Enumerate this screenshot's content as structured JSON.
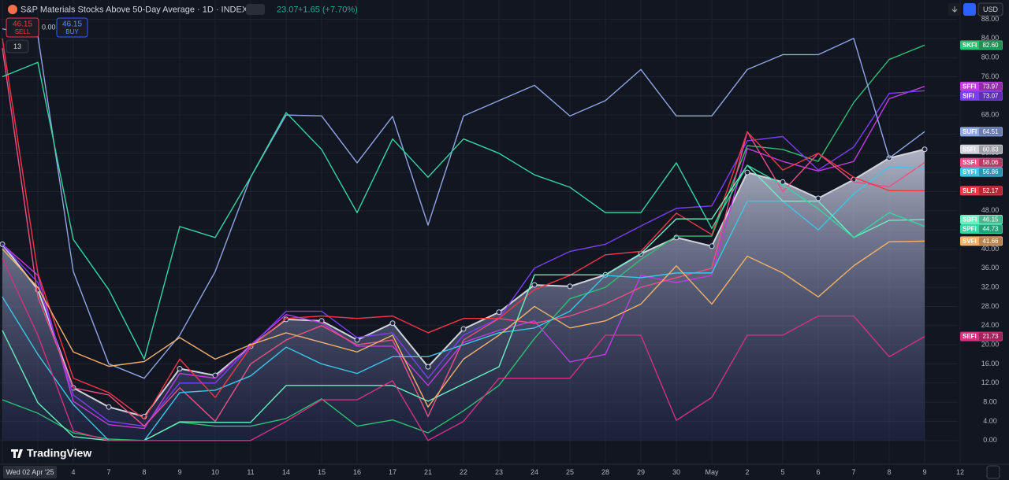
{
  "header": {
    "title": "S&P Materials Stocks Above 50-Day Average · 1D · INDEX",
    "last": "23.07",
    "change": "+1.65 (+7.70%)",
    "sell_price": "46.15",
    "sell": "SELL",
    "spread": "0.00",
    "buy_price": "46.15",
    "buy": "BUY",
    "indicator_count": "13",
    "currency": "USD",
    "logo": "TradingView"
  },
  "chart_data": {
    "type": "line",
    "categories": [
      "Wed 02 Apr '25",
      null,
      "4",
      "7",
      "8",
      "9",
      "10",
      "11",
      "14",
      "15",
      "16",
      "17",
      "21",
      "22",
      "23",
      "24",
      "25",
      "28",
      "29",
      "30",
      "May",
      "2",
      "5",
      "6",
      "7",
      "8",
      "9",
      "12"
    ],
    "ylim": [
      -2.5,
      91.2
    ],
    "yticks": [
      {
        "value": 0,
        "label": "0.00"
      },
      {
        "value": 4,
        "label": "4.00"
      },
      {
        "value": 8,
        "label": "8.00"
      },
      {
        "value": 12,
        "label": "12.00"
      },
      {
        "value": 16,
        "label": "16.00"
      },
      {
        "value": 20,
        "label": "20.00"
      },
      {
        "value": 24,
        "label": "24.00"
      },
      {
        "value": 28,
        "label": "28.00"
      },
      {
        "value": 32,
        "label": "32.00"
      },
      {
        "value": 36,
        "label": "36.00"
      },
      {
        "value": 40,
        "label": "40.00"
      },
      {
        "value": 44,
        "label": "44.00"
      },
      {
        "value": 48,
        "label": "48.00"
      },
      {
        "value": 52,
        "label": "52.00"
      },
      {
        "value": 56,
        "label": "56.00"
      },
      {
        "value": 60,
        "label": "60.00"
      },
      {
        "value": 64,
        "label": "64.00"
      },
      {
        "value": 68,
        "label": "68.00"
      },
      {
        "value": 72,
        "label": "72.00"
      },
      {
        "value": 76,
        "label": "76.00"
      },
      {
        "value": 80,
        "label": "80.00"
      },
      {
        "value": 84,
        "label": "84.00"
      },
      {
        "value": 88,
        "label": "88.00"
      }
    ],
    "grid": true,
    "series": [
      {
        "name": "S5FI",
        "color": "#d1d4dc",
        "area": true,
        "markers": true,
        "values": [
          41,
          31.5,
          11,
          7,
          5,
          15,
          13.6,
          19.7,
          25.3,
          25,
          21,
          24.5,
          15.4,
          23.3,
          26.8,
          32.5,
          32.2,
          34.6,
          39,
          42.4,
          40.6,
          56,
          54,
          50.6,
          54.5,
          59,
          60.83,
          null
        ],
        "value_labels": [
          null,
          null,
          null,
          null,
          null,
          null,
          null,
          null,
          null,
          null,
          null,
          null,
          null,
          null,
          null,
          null,
          null,
          null,
          null,
          null,
          null,
          null,
          null,
          null,
          null,
          null,
          "60.83",
          null
        ]
      },
      {
        "name": "SKFI",
        "color": "#2fbf71",
        "values": [
          8.5,
          5.7,
          1.6,
          0.3,
          0,
          3.8,
          3,
          3,
          4.6,
          8.7,
          3,
          4.3,
          1.6,
          6.2,
          11.5,
          21.3,
          29.6,
          32,
          37.8,
          42.7,
          42.7,
          61.6,
          60.8,
          58.3,
          70.6,
          79.6,
          82.6,
          null
        ],
        "value_labels": [
          null,
          null,
          null,
          null,
          null,
          null,
          null,
          null,
          null,
          null,
          null,
          null,
          null,
          null,
          null,
          null,
          null,
          null,
          null,
          null,
          null,
          null,
          null,
          null,
          null,
          null,
          "82.60",
          null
        ]
      },
      {
        "name": "SFFI",
        "color": "#c13be0",
        "values": [
          41,
          34.5,
          8.2,
          3.3,
          2.5,
          14,
          13,
          20,
          26.3,
          24.6,
          19.7,
          19.7,
          11.5,
          20.5,
          23,
          25,
          16.4,
          18,
          34.5,
          33,
          34.5,
          61,
          58.3,
          56.3,
          58.3,
          71.4,
          73.97,
          null
        ],
        "value_labels": [
          null,
          null,
          null,
          null,
          null,
          null,
          null,
          null,
          null,
          null,
          null,
          null,
          null,
          null,
          null,
          null,
          null,
          null,
          null,
          null,
          null,
          null,
          null,
          null,
          null,
          null,
          "73.97",
          null
        ]
      },
      {
        "name": "SIFI",
        "color": "#7b3ff2",
        "values": [
          41,
          33,
          9.5,
          4,
          3,
          12,
          12,
          19.7,
          27,
          27,
          21.5,
          22.5,
          13,
          22,
          25.5,
          36,
          39.5,
          41,
          44.8,
          48.5,
          49,
          62.6,
          63.5,
          56.5,
          61.3,
          72.5,
          73.07,
          null
        ],
        "value_labels": [
          null,
          null,
          null,
          null,
          null,
          null,
          null,
          null,
          null,
          null,
          null,
          null,
          null,
          null,
          null,
          null,
          null,
          null,
          null,
          null,
          null,
          null,
          null,
          null,
          null,
          null,
          "73.07",
          null
        ]
      },
      {
        "name": "SUFI",
        "color": "#8fa6e6",
        "values": [
          86,
          84.6,
          35.3,
          16,
          13,
          22,
          35.3,
          55,
          68,
          67.8,
          58,
          67.7,
          45,
          67.8,
          71,
          74.2,
          67.8,
          71,
          77.5,
          67.8,
          67.8,
          77.5,
          80.6,
          80.6,
          84,
          59,
          64.51,
          null
        ],
        "value_labels": [
          null,
          null,
          null,
          null,
          null,
          null,
          null,
          null,
          null,
          null,
          null,
          null,
          null,
          null,
          null,
          null,
          null,
          null,
          null,
          null,
          null,
          null,
          null,
          null,
          null,
          null,
          "64.51",
          null
        ]
      },
      {
        "name": "SSFI",
        "color": "#ef4f86",
        "values": [
          82,
          30,
          11,
          9.5,
          3,
          11,
          4,
          16,
          21,
          24,
          20,
          21,
          5,
          21,
          25.5,
          24.5,
          26,
          28.5,
          32,
          34,
          36,
          64.5,
          52,
          60,
          54,
          53,
          58.06,
          null
        ],
        "value_labels": [
          null,
          null,
          null,
          null,
          null,
          null,
          null,
          null,
          null,
          null,
          null,
          null,
          null,
          null,
          null,
          null,
          null,
          null,
          null,
          null,
          null,
          null,
          null,
          null,
          null,
          null,
          "58.06",
          null
        ]
      },
      {
        "name": "SYFI",
        "color": "#3cc6ea",
        "values": [
          30,
          18,
          7.5,
          0,
          0,
          10,
          10.5,
          13.5,
          19.5,
          16,
          14,
          17.5,
          17.5,
          20,
          22.5,
          23.5,
          27,
          34.5,
          34,
          35,
          35,
          50,
          50,
          44,
          51.5,
          57.2,
          56.86,
          null
        ],
        "value_labels": [
          null,
          null,
          null,
          null,
          null,
          null,
          null,
          null,
          null,
          null,
          null,
          null,
          null,
          null,
          null,
          null,
          null,
          null,
          null,
          null,
          null,
          null,
          null,
          null,
          null,
          null,
          "56.86",
          null
        ]
      },
      {
        "name": "SLFI",
        "color": "#f23645",
        "values": [
          84,
          35,
          13,
          10,
          4.5,
          17,
          9,
          19.5,
          25.5,
          26,
          25.5,
          26,
          22.5,
          25.5,
          25.5,
          31.5,
          34.5,
          38.8,
          39.5,
          47.5,
          43,
          64.5,
          56.5,
          60,
          55,
          52.2,
          52.17,
          null
        ],
        "value_labels": [
          null,
          null,
          null,
          null,
          null,
          null,
          null,
          null,
          null,
          null,
          null,
          null,
          null,
          null,
          null,
          null,
          null,
          null,
          null,
          null,
          null,
          null,
          null,
          null,
          null,
          null,
          "52.17",
          null
        ]
      },
      {
        "name": "SBFI",
        "color": "#6af0c0",
        "values": [
          23,
          7.9,
          0.8,
          0,
          0,
          3.9,
          3.8,
          3.8,
          11.5,
          11.5,
          11.5,
          11.5,
          8.2,
          11.8,
          15.4,
          34.6,
          34.6,
          34.6,
          39,
          46.3,
          46.3,
          57.5,
          50,
          50,
          42.4,
          46,
          46.15,
          null
        ],
        "value_labels": [
          null,
          null,
          null,
          null,
          null,
          null,
          null,
          null,
          null,
          null,
          null,
          null,
          null,
          null,
          null,
          null,
          null,
          null,
          null,
          null,
          null,
          null,
          null,
          null,
          null,
          null,
          "46.15",
          null
        ]
      },
      {
        "name": "SPFI",
        "color": "#35d6a2",
        "values": [
          76,
          79,
          42,
          31.5,
          17,
          44.7,
          42.4,
          55,
          68.5,
          60.8,
          47.6,
          63,
          55,
          63,
          60,
          55.5,
          52.9,
          47.6,
          47.6,
          58,
          44.3,
          57.5,
          53.4,
          48.4,
          42.4,
          47.6,
          44.73,
          null
        ],
        "value_labels": [
          null,
          null,
          null,
          null,
          null,
          null,
          null,
          null,
          null,
          null,
          null,
          null,
          null,
          null,
          null,
          null,
          null,
          null,
          null,
          null,
          null,
          null,
          null,
          null,
          null,
          null,
          "44.73",
          null
        ]
      },
      {
        "name": "SVFI",
        "color": "#f5b06a",
        "values": [
          40,
          32,
          18.5,
          15.5,
          16.5,
          21.5,
          17,
          20,
          22.5,
          20.5,
          18.5,
          22,
          7,
          17,
          22,
          28,
          23.5,
          25,
          28.5,
          36.5,
          28.5,
          38.5,
          35,
          30,
          36.5,
          41.5,
          41.66,
          null
        ],
        "value_labels": [
          null,
          null,
          null,
          null,
          null,
          null,
          null,
          null,
          null,
          null,
          null,
          null,
          null,
          null,
          null,
          null,
          null,
          null,
          null,
          null,
          null,
          null,
          null,
          null,
          null,
          null,
          "41.66",
          null
        ]
      },
      {
        "name": "SEFI",
        "color": "#d6307e",
        "values": [
          38,
          22,
          2,
          0,
          0,
          0,
          0,
          0,
          4,
          8.5,
          8.5,
          12.5,
          0,
          4,
          13,
          13,
          13,
          22,
          22,
          4.2,
          9,
          22,
          22,
          26,
          26,
          17.5,
          21.73,
          null
        ],
        "value_labels": [
          null,
          null,
          null,
          null,
          null,
          null,
          null,
          null,
          null,
          null,
          null,
          null,
          null,
          null,
          null,
          null,
          null,
          null,
          null,
          null,
          null,
          null,
          null,
          null,
          null,
          null,
          "21.73",
          null
        ]
      }
    ]
  }
}
